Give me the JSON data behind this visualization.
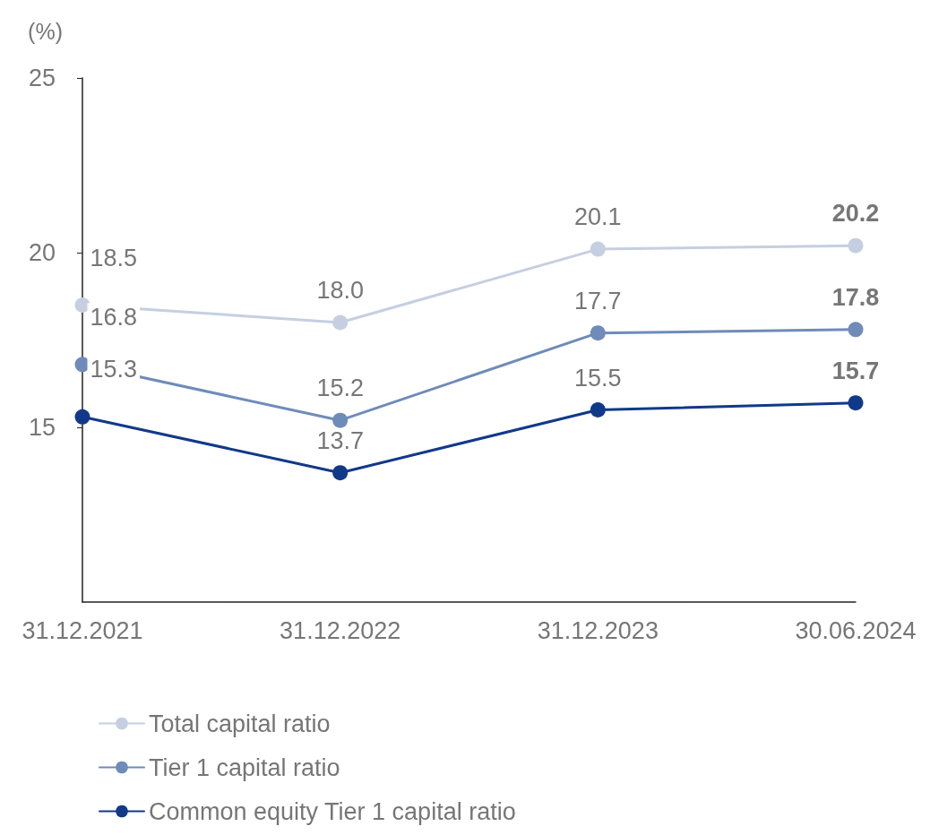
{
  "chart_data": {
    "type": "line",
    "ylabel": "(%)",
    "categories": [
      "31.12.2021",
      "31.12.2022",
      "31.12.2023",
      "30.06.2024"
    ],
    "series": [
      {
        "name": "Total capital ratio",
        "color": "#c5cfe1",
        "values": [
          18.5,
          18.0,
          20.1,
          20.2
        ],
        "value_labels": [
          "18.5",
          "18.0",
          "20.1",
          "20.2"
        ]
      },
      {
        "name": "Tier 1 capital ratio",
        "color": "#6f8bb9",
        "values": [
          16.8,
          15.2,
          17.7,
          17.8
        ],
        "value_labels": [
          "16.8",
          "15.2",
          "17.7",
          "17.8"
        ]
      },
      {
        "name": "Common equity Tier 1 capital ratio",
        "color": "#11398a",
        "values": [
          15.3,
          13.7,
          15.5,
          15.7
        ],
        "value_labels": [
          "15.3",
          "13.7",
          "15.5",
          "15.7"
        ]
      }
    ],
    "ylim": [
      10,
      25
    ],
    "yticks": [
      15,
      20,
      25
    ],
    "grid": false,
    "legend": "bottom left",
    "marker": "circle",
    "line_style": "solid"
  }
}
